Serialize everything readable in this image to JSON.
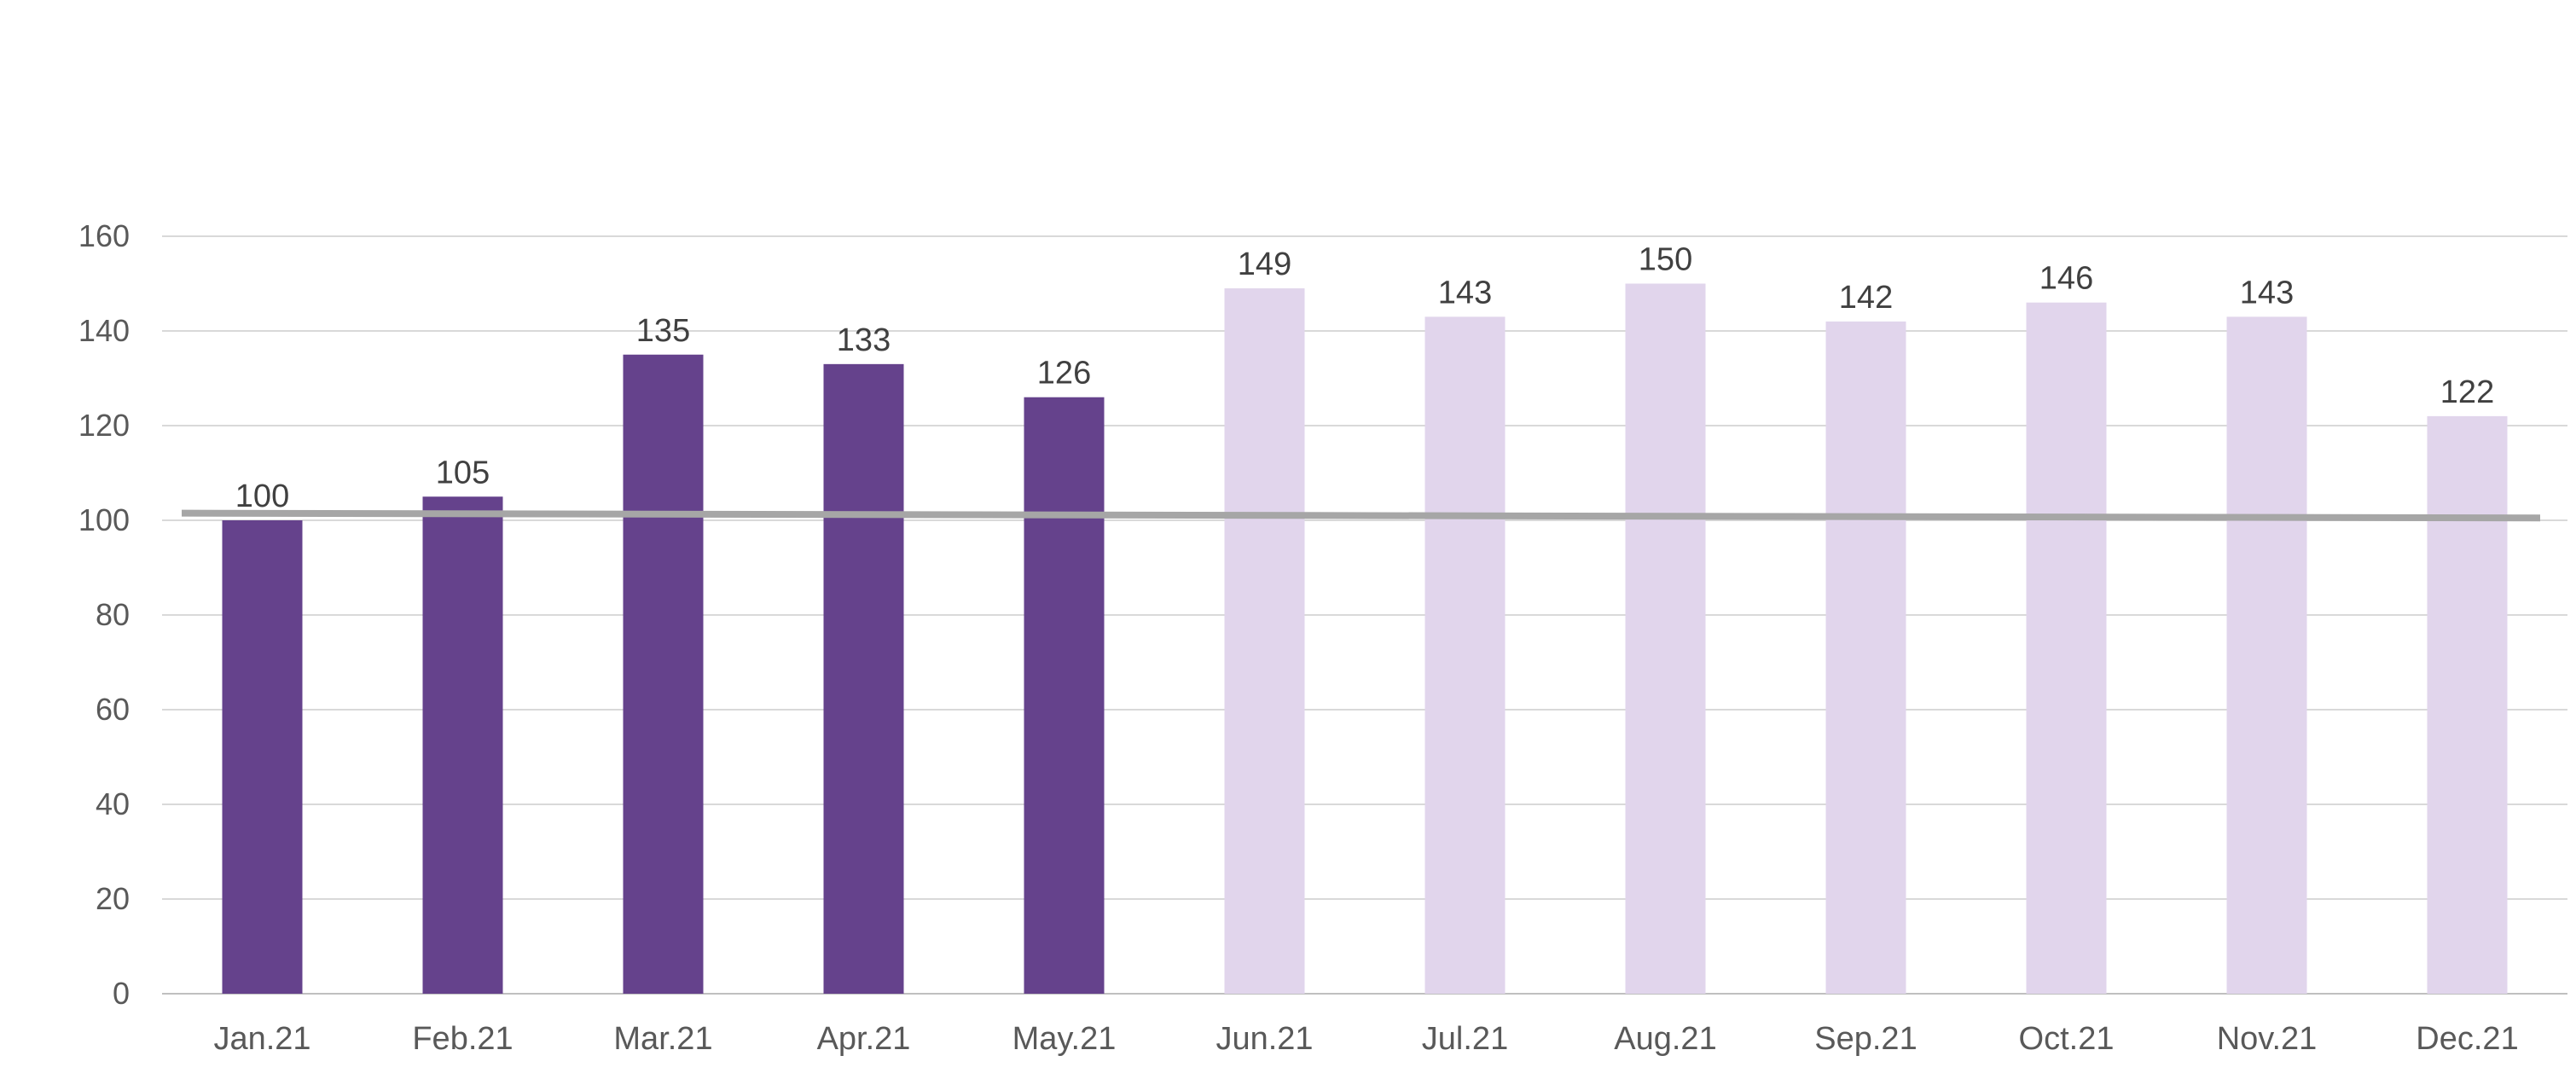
{
  "chart_data": {
    "type": "bar",
    "categories": [
      "Jan.21",
      "Feb.21",
      "Mar.21",
      "Apr.21",
      "May.21",
      "Jun.21",
      "Jul.21",
      "Aug.21",
      "Sep.21",
      "Oct.21",
      "Nov.21",
      "Dec.21"
    ],
    "values": [
      100,
      105,
      135,
      133,
      126,
      149,
      143,
      150,
      142,
      146,
      143,
      122
    ],
    "data_labels": [
      "100",
      "105",
      "135",
      "133",
      "126",
      "149",
      "143",
      "150",
      "142",
      "146",
      "143",
      "122"
    ],
    "bar_colors": [
      "#65428c",
      "#65428c",
      "#65428c",
      "#65428c",
      "#65428c",
      "#e1d5ec",
      "#e1d5ec",
      "#e1d5ec",
      "#e1d5ec",
      "#e1d5ec",
      "#e1d5ec",
      "#e1d5ec"
    ],
    "reference_line": {
      "start": 101.5,
      "end": 100.5,
      "color": "#a6a6a6"
    },
    "ylim": [
      0,
      160
    ],
    "yticks": [
      0,
      20,
      40,
      60,
      80,
      100,
      120,
      140,
      160
    ],
    "ytick_labels": [
      "0",
      "20",
      "40",
      "60",
      "80",
      "100",
      "120",
      "140",
      "160"
    ],
    "grid": true,
    "legend": "none",
    "title": "",
    "xlabel": "",
    "ylabel": ""
  },
  "colors": {
    "gridline": "#d9d9d9",
    "axis": "#bfbfbf"
  }
}
